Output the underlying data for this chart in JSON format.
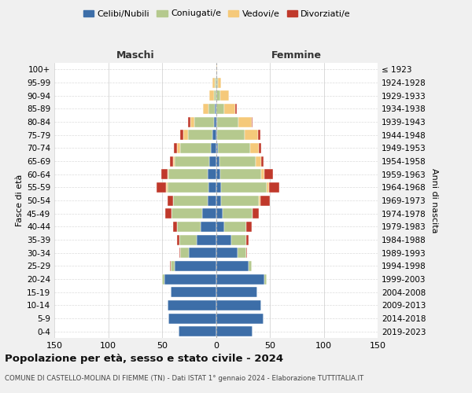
{
  "age_groups": [
    "0-4",
    "5-9",
    "10-14",
    "15-19",
    "20-24",
    "25-29",
    "30-34",
    "35-39",
    "40-44",
    "45-49",
    "50-54",
    "55-59",
    "60-64",
    "65-69",
    "70-74",
    "75-79",
    "80-84",
    "85-89",
    "90-94",
    "95-99",
    "100+"
  ],
  "birth_years": [
    "2019-2023",
    "2014-2018",
    "2009-2013",
    "2004-2008",
    "1999-2003",
    "1994-1998",
    "1989-1993",
    "1984-1988",
    "1979-1983",
    "1974-1978",
    "1969-1973",
    "1964-1968",
    "1959-1963",
    "1954-1958",
    "1949-1953",
    "1944-1948",
    "1939-1943",
    "1934-1938",
    "1929-1933",
    "1924-1928",
    "≤ 1923"
  ],
  "colors": {
    "celibe": "#3d6ea8",
    "coniugato": "#b5c98e",
    "vedovo": "#f5c97a",
    "divorziato": "#c0392b"
  },
  "male": {
    "celibe": [
      35,
      44,
      45,
      42,
      48,
      38,
      25,
      18,
      14,
      13,
      8,
      7,
      8,
      6,
      5,
      3,
      2,
      1,
      0,
      0,
      0
    ],
    "coniugato": [
      0,
      0,
      0,
      0,
      2,
      4,
      8,
      16,
      22,
      28,
      32,
      38,
      36,
      32,
      28,
      23,
      18,
      6,
      2,
      1,
      0
    ],
    "vedovo": [
      0,
      0,
      0,
      0,
      0,
      0,
      0,
      0,
      0,
      0,
      0,
      1,
      1,
      2,
      3,
      4,
      4,
      5,
      4,
      2,
      0
    ],
    "divorziato": [
      0,
      0,
      0,
      0,
      0,
      1,
      1,
      2,
      4,
      6,
      5,
      9,
      6,
      3,
      3,
      3,
      2,
      0,
      0,
      0,
      0
    ]
  },
  "female": {
    "nubile": [
      34,
      44,
      42,
      38,
      45,
      30,
      20,
      14,
      8,
      6,
      5,
      5,
      4,
      3,
      2,
      1,
      1,
      0,
      0,
      0,
      0
    ],
    "coniugata": [
      0,
      0,
      0,
      0,
      2,
      3,
      8,
      14,
      20,
      28,
      35,
      42,
      38,
      34,
      30,
      26,
      20,
      8,
      4,
      2,
      0
    ],
    "vedova": [
      0,
      0,
      0,
      0,
      0,
      0,
      0,
      0,
      0,
      0,
      1,
      2,
      3,
      5,
      8,
      12,
      12,
      10,
      8,
      3,
      1
    ],
    "divorziata": [
      0,
      0,
      0,
      0,
      0,
      0,
      1,
      2,
      5,
      6,
      9,
      10,
      8,
      2,
      2,
      2,
      1,
      1,
      0,
      0,
      0
    ]
  },
  "xlim": 150,
  "xticks": [
    -150,
    -100,
    -50,
    0,
    50,
    100,
    150
  ],
  "xticklabels": [
    "150",
    "100",
    "50",
    "0",
    "50",
    "100",
    "150"
  ],
  "title": "Popolazione per età, sesso e stato civile - 2024",
  "subtitle": "COMUNE DI CASTELLO-MOLINA DI FIEMME (TN) - Dati ISTAT 1° gennaio 2024 - Elaborazione TUTTITALIA.IT",
  "ylabel_left": "Fasce di età",
  "ylabel_right": "Anni di nascita",
  "label_maschi": "Maschi",
  "label_femmine": "Femmine",
  "legend_labels": [
    "Celibi/Nubili",
    "Coniugati/e",
    "Vedovi/e",
    "Divorziati/e"
  ],
  "background_color": "#f0f0f0",
  "plot_background": "#ffffff"
}
